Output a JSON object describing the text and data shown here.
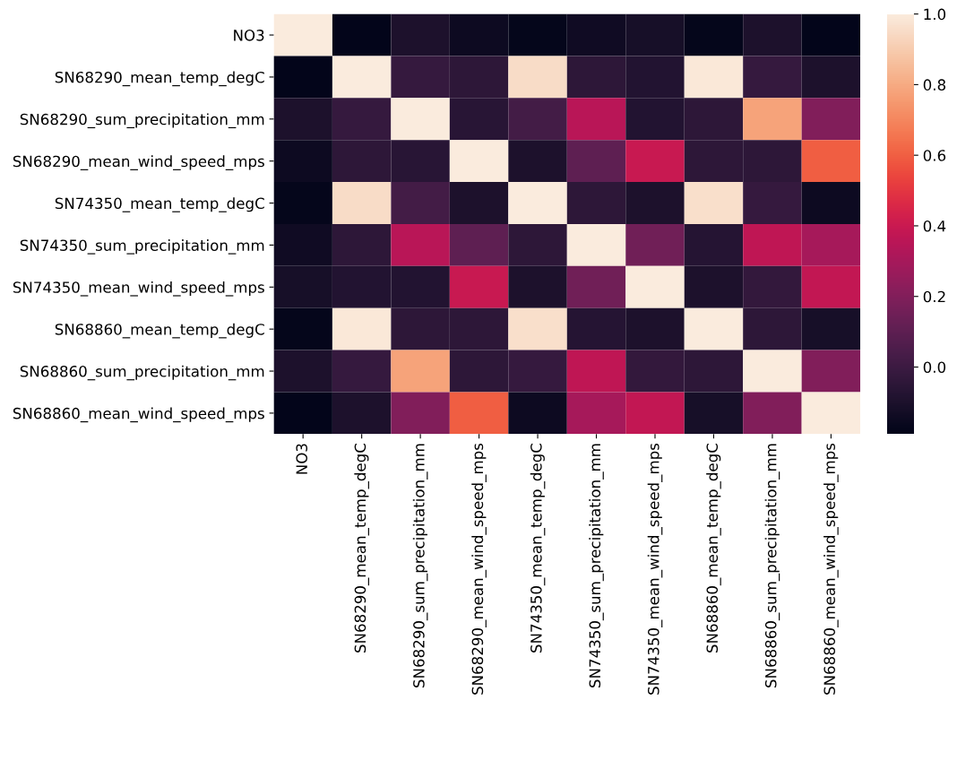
{
  "chart_data": {
    "type": "heatmap",
    "categories": [
      "NO3",
      "SN68290_mean_temp_degC",
      "SN68290_sum_precipitation_mm",
      "SN68290_mean_wind_speed_mps",
      "SN74350_mean_temp_degC",
      "SN74350_sum_precipitation_mm",
      "SN74350_mean_wind_speed_mps",
      "SN68860_mean_temp_degC",
      "SN68860_sum_precipitation_mm",
      "SN68860_mean_wind_speed_mps"
    ],
    "y_categories": [
      "NO3",
      "SN68290_mean_temp_degC",
      "SN68290_sum_precipitation_mm",
      "SN68290_mean_wind_speed_mps",
      "SN74350_mean_temp_degC",
      "SN74350_sum_precipitation_mm",
      "SN74350_mean_wind_speed_mps",
      "SN68860_mean_temp_degC",
      "SN68860_sum_precipitation_mm",
      "SN68860_mean_wind_speed_mps"
    ],
    "cells": [
      [
        1.0,
        -0.19,
        -0.1,
        -0.15,
        -0.18,
        -0.14,
        -0.12,
        -0.18,
        -0.1,
        -0.19
      ],
      [
        -0.19,
        1.0,
        -0.02,
        -0.05,
        0.95,
        -0.05,
        -0.08,
        0.99,
        -0.02,
        -0.1
      ],
      [
        -0.1,
        -0.02,
        1.0,
        -0.06,
        0.02,
        0.35,
        -0.08,
        -0.05,
        0.78,
        0.2
      ],
      [
        -0.15,
        -0.05,
        -0.06,
        1.0,
        -0.1,
        0.1,
        0.4,
        -0.05,
        -0.05,
        0.6
      ],
      [
        -0.18,
        0.95,
        0.02,
        -0.1,
        1.0,
        -0.05,
        -0.1,
        0.96,
        -0.02,
        -0.15
      ],
      [
        -0.14,
        -0.05,
        0.35,
        0.1,
        -0.05,
        1.0,
        0.15,
        -0.07,
        0.37,
        0.3
      ],
      [
        -0.12,
        -0.08,
        -0.08,
        0.4,
        -0.1,
        0.15,
        1.0,
        -0.1,
        -0.03,
        0.38
      ],
      [
        -0.18,
        0.99,
        -0.05,
        -0.05,
        0.96,
        -0.07,
        -0.1,
        1.0,
        -0.05,
        -0.12
      ],
      [
        -0.1,
        -0.02,
        0.78,
        -0.05,
        -0.02,
        0.37,
        -0.03,
        -0.05,
        1.0,
        0.2
      ],
      [
        -0.19,
        -0.1,
        0.2,
        0.6,
        -0.15,
        0.3,
        0.38,
        -0.12,
        0.2,
        1.0
      ]
    ],
    "clim": [
      -0.19,
      1.0
    ],
    "cticks": [
      {
        "value": 0,
        "label": "0.0"
      },
      {
        "value": 0.2,
        "label": "0.2"
      },
      {
        "value": 0.4,
        "label": "0.4"
      },
      {
        "value": 0.6,
        "label": "0.6"
      },
      {
        "value": 0.8,
        "label": "0.8"
      },
      {
        "value": 1,
        "label": "1.0"
      }
    ]
  }
}
